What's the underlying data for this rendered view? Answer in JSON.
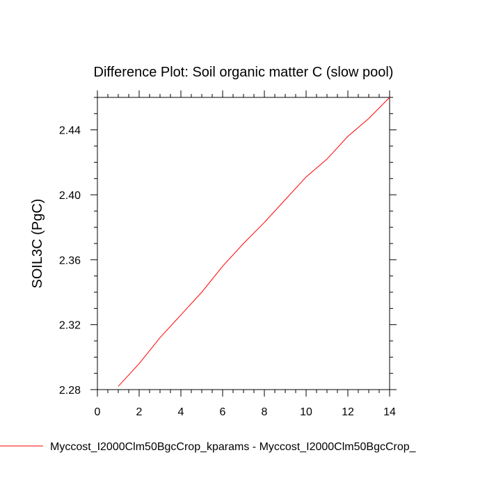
{
  "chart_data": {
    "type": "line",
    "title": "Difference Plot: Soil organic matter C (slow pool)",
    "xlabel": "",
    "ylabel": "SOIL3C  (PgC)",
    "xlim": [
      0,
      14
    ],
    "ylim": [
      2.28,
      2.46
    ],
    "x_ticks": [
      0,
      2,
      4,
      6,
      8,
      10,
      12,
      14
    ],
    "x_tick_labels": [
      "0",
      "2",
      "4",
      "6",
      "8",
      "10",
      "12",
      "14"
    ],
    "y_ticks": [
      2.28,
      2.32,
      2.36,
      2.4,
      2.44
    ],
    "y_tick_labels": [
      "2.28",
      "2.32",
      "2.36",
      "2.40",
      "2.44"
    ],
    "grid": false,
    "legend_position": "bottom",
    "series": [
      {
        "name": "Myccost_I2000Clm50BgcCrop_kparams - Myccost_I2000Clm50BgcCrop_",
        "color": "#ff0000",
        "x": [
          1,
          2,
          3,
          4,
          5,
          6,
          7,
          8,
          9,
          10,
          11,
          12,
          13,
          14
        ],
        "values": [
          2.282,
          2.296,
          2.312,
          2.326,
          2.34,
          2.356,
          2.37,
          2.383,
          2.397,
          2.411,
          2.422,
          2.436,
          2.447,
          2.46
        ]
      }
    ]
  }
}
